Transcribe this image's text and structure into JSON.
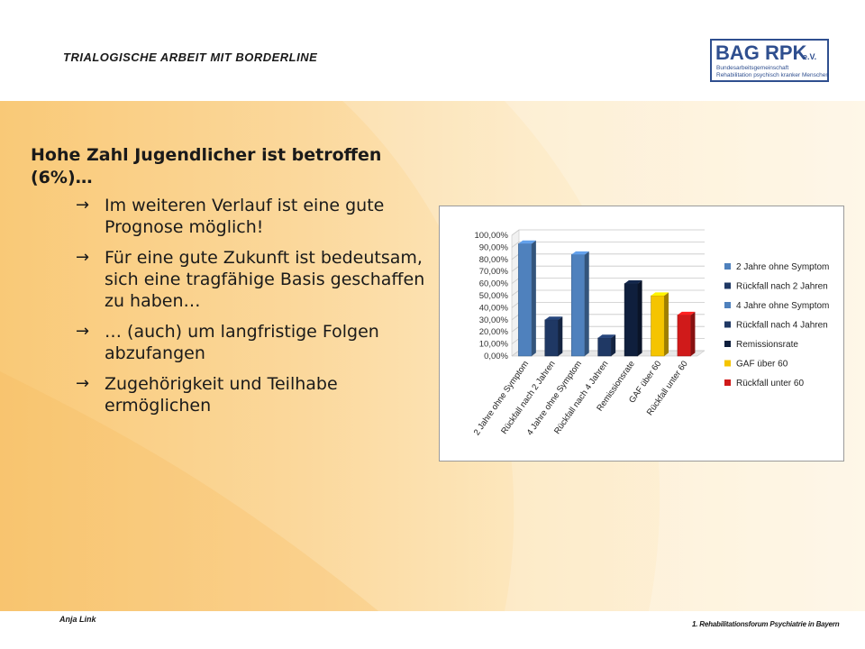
{
  "header": {
    "title": "TRIALOGISCHE ARBEIT MIT BORDERLINE"
  },
  "logo": {
    "main": "BAG RPK",
    "suffix": "e.V.",
    "line1": "Bundesarbeitsgemeinschaft",
    "line2": "Rehabilitation psychisch kranker Menschen"
  },
  "content": {
    "heading": "Hohe Zahl Jugendlicher ist betroffen (6%)…",
    "arrow_symbol": "→",
    "bullets": [
      "Im weiteren Verlauf ist eine gute Prognose möglich!",
      "Für eine gute Zukunft ist bedeutsam, sich eine tragfähige Basis geschaffen zu haben…",
      "… (auch) um langfristige Folgen abzufangen",
      "Zugehörigkeit und Teilhabe ermöglichen"
    ]
  },
  "chart_data": {
    "type": "bar",
    "categories": [
      "2 Jahre ohne Symptom",
      "Rückfall nach 2 Jahren",
      "4 Jahre ohne Symptom",
      "Rückfall nach 4 Jahren",
      "Remissionsrate",
      "GAF über 60",
      "Rückfall unter 60"
    ],
    "values": [
      93,
      30,
      84,
      15,
      60,
      50,
      34
    ],
    "colors": [
      "#4f81bd",
      "#1f3864",
      "#4f81bd",
      "#1f3864",
      "#0f1f3d",
      "#f5c400",
      "#d01a1a"
    ],
    "yticks": [
      "0,00%",
      "10,00%",
      "20,00%",
      "30,00%",
      "40,00%",
      "50,00%",
      "60,00%",
      "70,00%",
      "80,00%",
      "90,00%",
      "100,00%"
    ],
    "ylim": [
      0,
      100
    ],
    "ytick_step": 10,
    "legend": [
      {
        "name": "2 Jahre ohne Symptom",
        "color": "#4f81bd"
      },
      {
        "name": "Rückfall nach 2 Jahren",
        "color": "#1f3864"
      },
      {
        "name": "4 Jahre ohne Symptom",
        "color": "#4f81bd"
      },
      {
        "name": "Rückfall nach 4 Jahren",
        "color": "#1f3864"
      },
      {
        "name": "Remissionsrate",
        "color": "#0f1f3d"
      },
      {
        "name": "GAF über 60",
        "color": "#f5c400"
      },
      {
        "name": "Rückfall unter 60",
        "color": "#d01a1a"
      }
    ],
    "legend_position": "right",
    "grid": true,
    "style": "3d-column"
  },
  "footer": {
    "author": "Anja Link",
    "event": "1. Rehabilitationsforum Psychiatrie in Bayern"
  }
}
